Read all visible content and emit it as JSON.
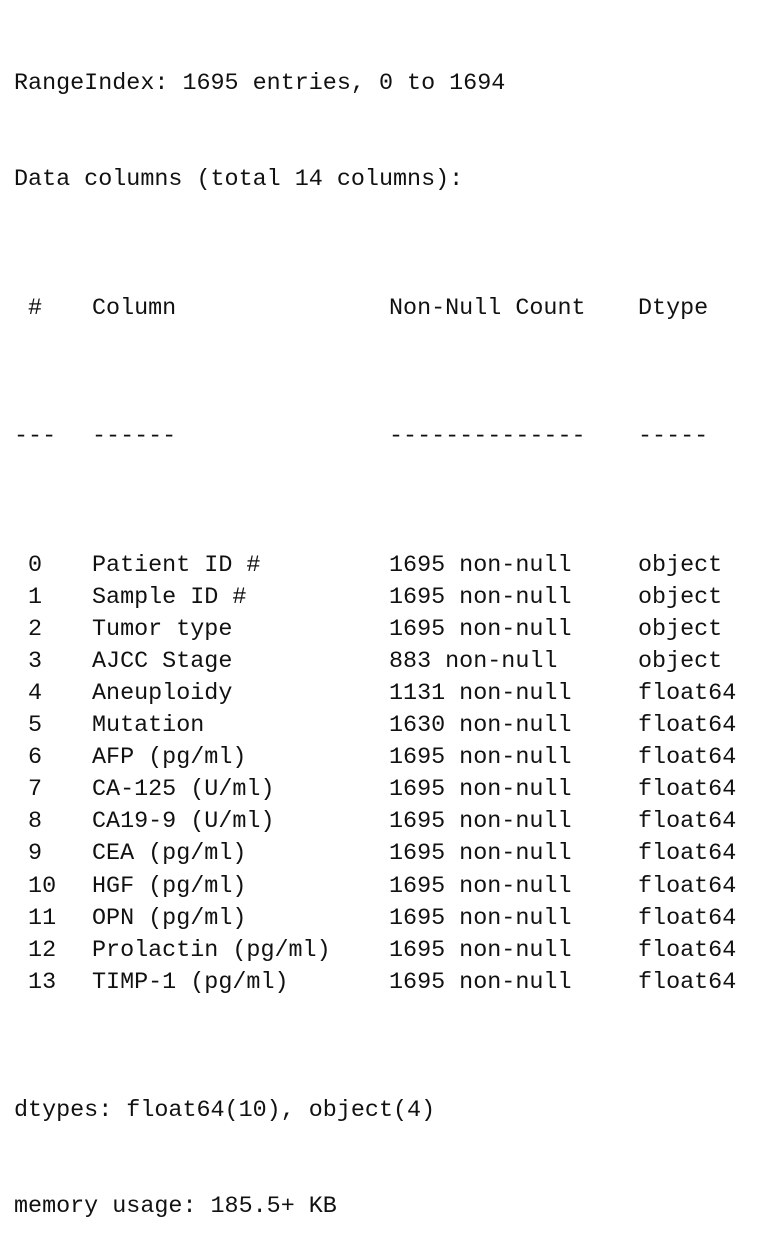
{
  "header": {
    "range_index": "RangeIndex: 1695 entries, 0 to 1694",
    "data_columns": "Data columns (total 14 columns):"
  },
  "table": {
    "headers": {
      "idx": " #",
      "column": "Column",
      "non_null": "Non-Null Count",
      "dtype": "Dtype"
    },
    "separators": {
      "idx": "---",
      "column": "------",
      "non_null": "--------------",
      "dtype": "-----"
    },
    "rows": [
      {
        "idx": " 0",
        "column": "Patient ID #",
        "non_null": "1695 non-null",
        "dtype": "object"
      },
      {
        "idx": " 1",
        "column": "Sample ID #",
        "non_null": "1695 non-null",
        "dtype": "object"
      },
      {
        "idx": " 2",
        "column": "Tumor type",
        "non_null": "1695 non-null",
        "dtype": "object"
      },
      {
        "idx": " 3",
        "column": "AJCC Stage",
        "non_null": "883 non-null",
        "dtype": "object"
      },
      {
        "idx": " 4",
        "column": "Aneuploidy",
        "non_null": "1131 non-null",
        "dtype": "float64"
      },
      {
        "idx": " 5",
        "column": "Mutation",
        "non_null": "1630 non-null",
        "dtype": "float64"
      },
      {
        "idx": " 6",
        "column": "AFP (pg/ml)",
        "non_null": "1695 non-null",
        "dtype": "float64"
      },
      {
        "idx": " 7",
        "column": "CA-125 (U/ml)",
        "non_null": "1695 non-null",
        "dtype": "float64"
      },
      {
        "idx": " 8",
        "column": "CA19-9 (U/ml)",
        "non_null": "1695 non-null",
        "dtype": "float64"
      },
      {
        "idx": " 9",
        "column": "CEA (pg/ml)",
        "non_null": "1695 non-null",
        "dtype": "float64"
      },
      {
        "idx": " 10",
        "column": "HGF (pg/ml)",
        "non_null": "1695 non-null",
        "dtype": "float64"
      },
      {
        "idx": " 11",
        "column": "OPN (pg/ml)",
        "non_null": "1695 non-null",
        "dtype": "float64"
      },
      {
        "idx": " 12",
        "column": "Prolactin (pg/ml)",
        "non_null": "1695 non-null",
        "dtype": "float64"
      },
      {
        "idx": " 13",
        "column": "TIMP-1 (pg/ml)",
        "non_null": "1695 non-null",
        "dtype": "float64"
      }
    ]
  },
  "footer": {
    "dtypes": "dtypes: float64(10), object(4)",
    "memory": "memory usage: 185.5+ KB"
  }
}
